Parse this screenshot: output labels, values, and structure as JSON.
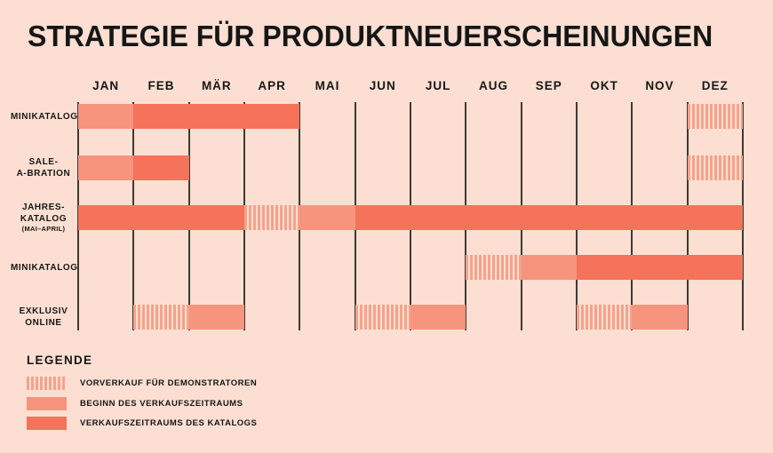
{
  "title": "STRATEGIE FÜR PRODUKTNEUERSCHEINUNGEN",
  "months": [
    "JAN",
    "FEB",
    "MÄR",
    "APR",
    "MAI",
    "JUN",
    "JUL",
    "AUG",
    "SEP",
    "OKT",
    "NOV",
    "DEZ"
  ],
  "legend": {
    "title": "LEGENDE",
    "items": [
      {
        "kind": "vorverkauf",
        "label": "VORVERKAUF FÜR DEMONSTRATOREN"
      },
      {
        "kind": "beginn",
        "label": "BEGINN DES VERKAUFSZEITRAUMS"
      },
      {
        "kind": "katalog",
        "label": "VERKAUFSZEITRAUMS DES KATALOGS"
      }
    ]
  },
  "colors": {
    "background": "#fcdfd2",
    "light_salmon": "#f6947e",
    "dark_coral": "#f4735a",
    "stripe": "#f6a28b",
    "grid_line": "#3e3a33",
    "text": "#161616"
  },
  "chart_data": {
    "type": "bar",
    "subtype": "gantt-timeline",
    "title": "STRATEGIE FÜR PRODUKTNEUERSCHEINUNGEN",
    "x_categories": [
      "JAN",
      "FEB",
      "MÄR",
      "APR",
      "MAI",
      "JUN",
      "JUL",
      "AUG",
      "SEP",
      "OKT",
      "NOV",
      "DEZ"
    ],
    "grid": true,
    "legend_position": "bottom-left",
    "segment_kinds": {
      "vorverkauf": "VORVERKAUF FÜR DEMONSTRATOREN",
      "beginn": "BEGINN DES VERKAUFSZEITRAUMS",
      "katalog": "VERKAUFSZEITRAUMS DES KATALOGS"
    },
    "rows": [
      {
        "label_lines": [
          "MINIKATALOG"
        ],
        "sublabel": "",
        "segments": [
          {
            "from": 1,
            "to": 1,
            "kind": "beginn"
          },
          {
            "from": 2,
            "to": 4,
            "kind": "katalog"
          },
          {
            "from": 12,
            "to": 12,
            "kind": "vorverkauf"
          }
        ]
      },
      {
        "label_lines": [
          "SALE-",
          "A-BRATION"
        ],
        "sublabel": "",
        "segments": [
          {
            "from": 1,
            "to": 1,
            "kind": "beginn"
          },
          {
            "from": 2,
            "to": 2,
            "kind": "katalog"
          },
          {
            "from": 12,
            "to": 12,
            "kind": "vorverkauf"
          }
        ]
      },
      {
        "label_lines": [
          "JAHRES-",
          "KATALOG"
        ],
        "sublabel": "(MAI–APRIL)",
        "segments": [
          {
            "from": 1,
            "to": 3,
            "kind": "katalog"
          },
          {
            "from": 4,
            "to": 4,
            "kind": "vorverkauf"
          },
          {
            "from": 5,
            "to": 5,
            "kind": "beginn"
          },
          {
            "from": 6,
            "to": 12,
            "kind": "katalog"
          }
        ]
      },
      {
        "label_lines": [
          "MINIKATALOG"
        ],
        "sublabel": "",
        "segments": [
          {
            "from": 8,
            "to": 8,
            "kind": "vorverkauf"
          },
          {
            "from": 9,
            "to": 9,
            "kind": "beginn"
          },
          {
            "from": 10,
            "to": 12,
            "kind": "katalog"
          }
        ]
      },
      {
        "label_lines": [
          "EXKLUSIV",
          "ONLINE"
        ],
        "sublabel": "",
        "segments": [
          {
            "from": 2,
            "to": 2,
            "kind": "vorverkauf"
          },
          {
            "from": 3,
            "to": 3,
            "kind": "beginn"
          },
          {
            "from": 6,
            "to": 6,
            "kind": "vorverkauf"
          },
          {
            "from": 7,
            "to": 7,
            "kind": "beginn"
          },
          {
            "from": 10,
            "to": 10,
            "kind": "vorverkauf"
          },
          {
            "from": 11,
            "to": 11,
            "kind": "beginn"
          }
        ]
      }
    ]
  }
}
